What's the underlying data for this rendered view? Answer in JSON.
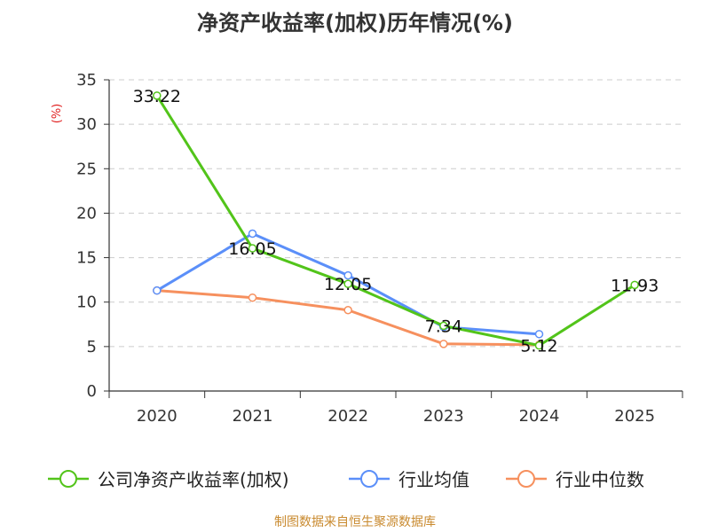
{
  "chart_data": {
    "type": "line",
    "title": "净资产收益率(加权)历年情况(%)",
    "ylabel": "(%)",
    "xlabel": "",
    "categories": [
      "2020",
      "2021",
      "2022",
      "2023",
      "2024",
      "2025"
    ],
    "ylim": [
      0,
      35
    ],
    "yticks": [
      0,
      5,
      10,
      15,
      20,
      25,
      30,
      35
    ],
    "grid": "horizontal dashed",
    "legend_position": "bottom",
    "series": [
      {
        "name": "公司净资产收益率(加权)",
        "color": "#52c41a",
        "values": [
          33.22,
          16.05,
          12.05,
          7.34,
          5.12,
          11.93
        ],
        "labels": [
          "33.22",
          "16.05",
          "12.05",
          "7.34",
          "5.12",
          "11.93"
        ]
      },
      {
        "name": "行业均值",
        "color": "#5b8ff9",
        "values": [
          11.3,
          17.7,
          13.0,
          7.2,
          6.4,
          null
        ]
      },
      {
        "name": "行业中位数",
        "color": "#f6905e",
        "values": [
          11.3,
          10.5,
          9.1,
          5.3,
          5.2,
          null
        ]
      }
    ],
    "source_note": "制图数据来自恒生聚源数据库"
  }
}
